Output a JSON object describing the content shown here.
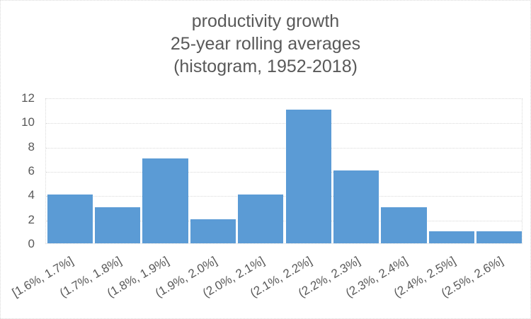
{
  "chart_data": {
    "type": "bar",
    "subtype": "histogram",
    "title_lines": [
      "productivity growth",
      "25-year rolling averages",
      "(histogram, 1952-2018)"
    ],
    "categories": [
      "[1.6%, 1.7%]",
      "(1.7%, 1.8%]",
      "(1.8%, 1.9%]",
      "(1.9%, 2.0%]",
      "(2.0%, 2.1%]",
      "(2.1%, 2.2%]",
      "(2.2%, 2.3%]",
      "(2.3%, 2.4%]",
      "(2.4%, 2.5%]",
      "(2.5%, 2.6%]"
    ],
    "values": [
      4,
      3,
      7,
      2,
      4,
      11,
      6,
      3,
      1,
      1
    ],
    "xlabel": "",
    "ylabel": "",
    "ylim": [
      0,
      12
    ],
    "yticks": [
      0,
      2,
      4,
      6,
      8,
      10,
      12
    ],
    "grid": true,
    "legend": "none",
    "x_label_rotation_deg": -30,
    "colors": {
      "bar": "#5B9BD5",
      "gridline": "#D9D9D9",
      "text": "#595959",
      "background": "#FFFFFF"
    }
  }
}
